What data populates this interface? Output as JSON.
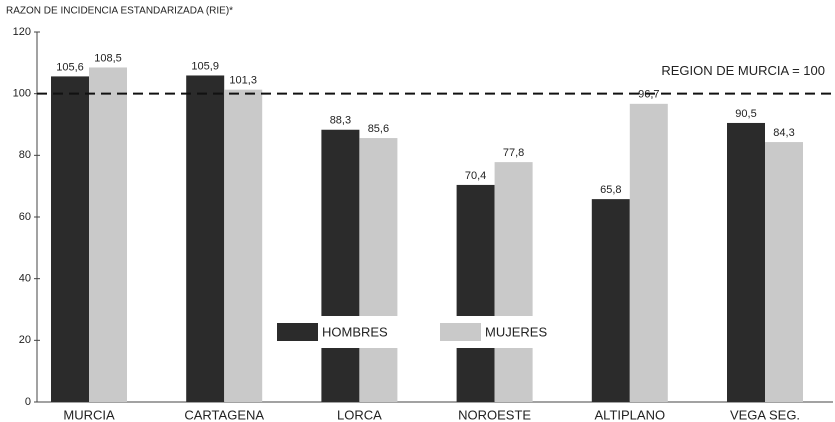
{
  "chart_data": {
    "type": "bar",
    "title": "RAZON DE INCIDENCIA ESTANDARIZADA (RIE)*",
    "categories": [
      "MURCIA",
      "CARTAGENA",
      "LORCA",
      "NOROESTE",
      "ALTIPLANO",
      "VEGA SEG."
    ],
    "series": [
      {
        "name": "HOMBRES",
        "color": "#2b2b2b",
        "values": [
          105.6,
          105.9,
          88.3,
          70.4,
          65.8,
          90.5
        ],
        "value_labels": [
          "105,6",
          "105,9",
          "88,3",
          "70,4",
          "65,8",
          "90,5"
        ]
      },
      {
        "name": "MUJERES",
        "color": "#c9c9c9",
        "values": [
          108.5,
          101.3,
          85.6,
          77.8,
          96.7,
          84.3
        ],
        "value_labels": [
          "108,5",
          "101,3",
          "85,6",
          "77,8",
          "96,7",
          "84,3"
        ]
      }
    ],
    "reference_line": {
      "value": 100,
      "label": "REGION DE MURCIA = 100"
    },
    "ylim": [
      0,
      120
    ],
    "yticks": [
      0,
      20,
      40,
      60,
      80,
      100,
      120
    ],
    "legend": "bottom-center"
  }
}
